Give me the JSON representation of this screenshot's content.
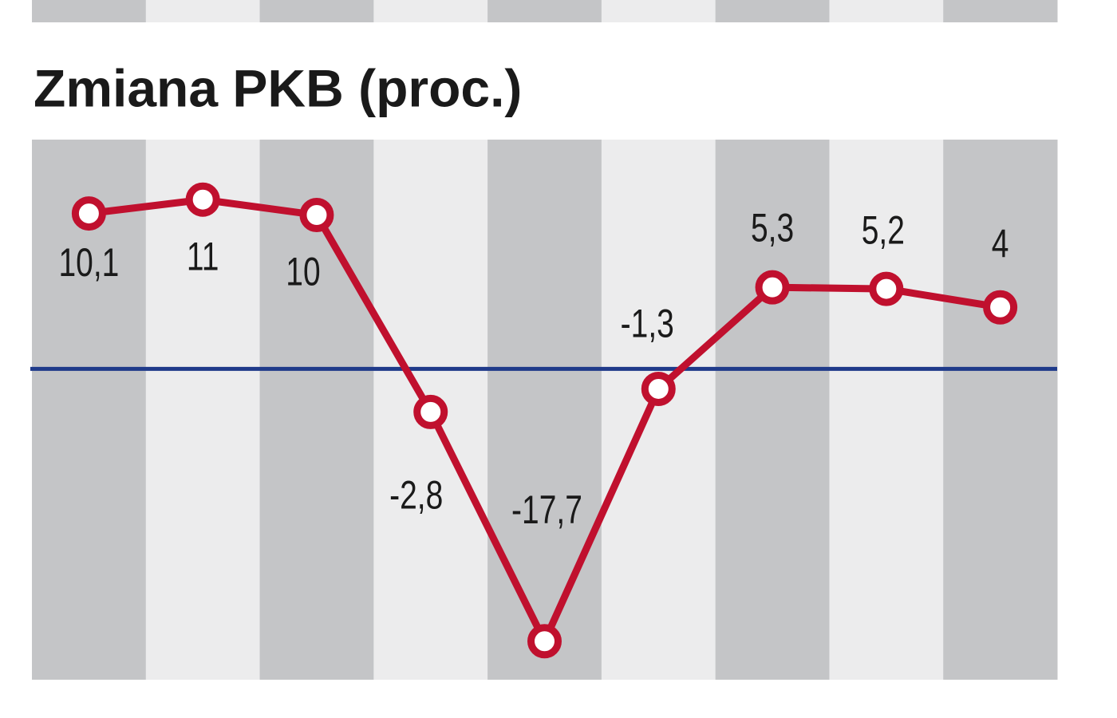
{
  "chart_data": {
    "type": "line",
    "title": "Zmiana PKB (proc.)",
    "categories": [
      null,
      null,
      null,
      null,
      null,
      null,
      null,
      null,
      null
    ],
    "series": [
      {
        "name": null,
        "color": "#c0102e",
        "values": [
          10.1,
          11,
          10,
          -2.8,
          -17.7,
          -1.3,
          5.3,
          5.2,
          4
        ],
        "value_labels": [
          "10,1",
          "11",
          "10",
          "-2,8",
          "-17,7",
          "-1,3",
          "5,3",
          "5,2",
          "4"
        ]
      }
    ],
    "ylim": [
      -20.2,
      14.9
    ]
  }
}
